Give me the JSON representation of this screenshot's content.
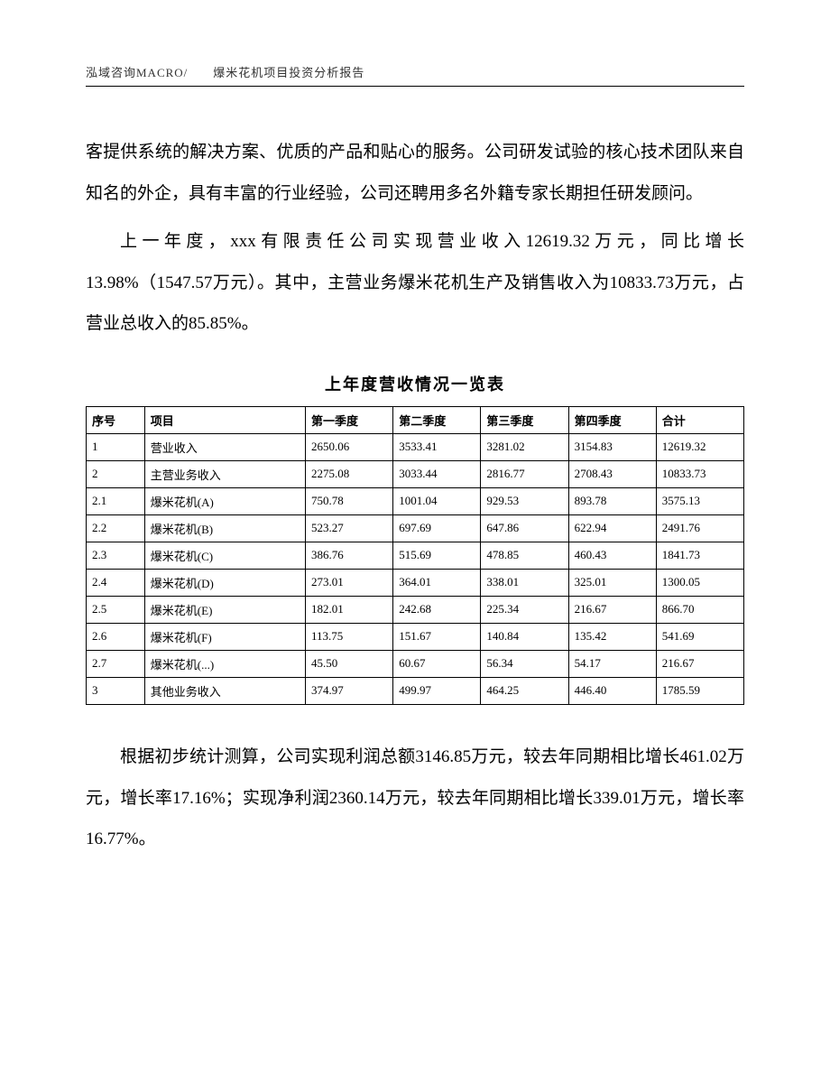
{
  "header": {
    "text": "泓域咨询MACRO/　　爆米花机项目投资分析报告"
  },
  "paragraphs": {
    "p1": "客提供系统的解决方案、优质的产品和贴心的服务。公司研发试验的核心技术团队来自知名的外企，具有丰富的行业经验，公司还聘用多名外籍专家长期担任研发顾问。",
    "p2": "上一年度，xxx有限责任公司实现营业收入12619.32万元，同比增长13.98%（1547.57万元）。其中，主营业务爆米花机生产及销售收入为10833.73万元，占营业总收入的85.85%。",
    "p3": "根据初步统计测算，公司实现利润总额3146.85万元，较去年同期相比增长461.02万元，增长率17.16%；实现净利润2360.14万元，较去年同期相比增长339.01万元，增长率16.77%。"
  },
  "table": {
    "title": "上年度营收情况一览表",
    "columns": {
      "seq": "序号",
      "item": "项目",
      "q1": "第一季度",
      "q2": "第二季度",
      "q3": "第三季度",
      "q4": "第四季度",
      "total": "合计"
    },
    "rows": [
      {
        "seq": "1",
        "item": "营业收入",
        "q1": "2650.06",
        "q2": "3533.41",
        "q3": "3281.02",
        "q4": "3154.83",
        "total": "12619.32"
      },
      {
        "seq": "2",
        "item": "主营业务收入",
        "q1": "2275.08",
        "q2": "3033.44",
        "q3": "2816.77",
        "q4": "2708.43",
        "total": "10833.73"
      },
      {
        "seq": "2.1",
        "item": "爆米花机(A)",
        "q1": "750.78",
        "q2": "1001.04",
        "q3": "929.53",
        "q4": "893.78",
        "total": "3575.13"
      },
      {
        "seq": "2.2",
        "item": "爆米花机(B)",
        "q1": "523.27",
        "q2": "697.69",
        "q3": "647.86",
        "q4": "622.94",
        "total": "2491.76"
      },
      {
        "seq": "2.3",
        "item": "爆米花机(C)",
        "q1": "386.76",
        "q2": "515.69",
        "q3": "478.85",
        "q4": "460.43",
        "total": "1841.73"
      },
      {
        "seq": "2.4",
        "item": "爆米花机(D)",
        "q1": "273.01",
        "q2": "364.01",
        "q3": "338.01",
        "q4": "325.01",
        "total": "1300.05"
      },
      {
        "seq": "2.5",
        "item": "爆米花机(E)",
        "q1": "182.01",
        "q2": "242.68",
        "q3": "225.34",
        "q4": "216.67",
        "total": "866.70"
      },
      {
        "seq": "2.6",
        "item": "爆米花机(F)",
        "q1": "113.75",
        "q2": "151.67",
        "q3": "140.84",
        "q4": "135.42",
        "total": "541.69"
      },
      {
        "seq": "2.7",
        "item": "爆米花机(...)",
        "q1": "45.50",
        "q2": "60.67",
        "q3": "56.34",
        "q4": "54.17",
        "total": "216.67"
      },
      {
        "seq": "3",
        "item": "其他业务收入",
        "q1": "374.97",
        "q2": "499.97",
        "q3": "464.25",
        "q4": "446.40",
        "total": "1785.59"
      }
    ]
  }
}
